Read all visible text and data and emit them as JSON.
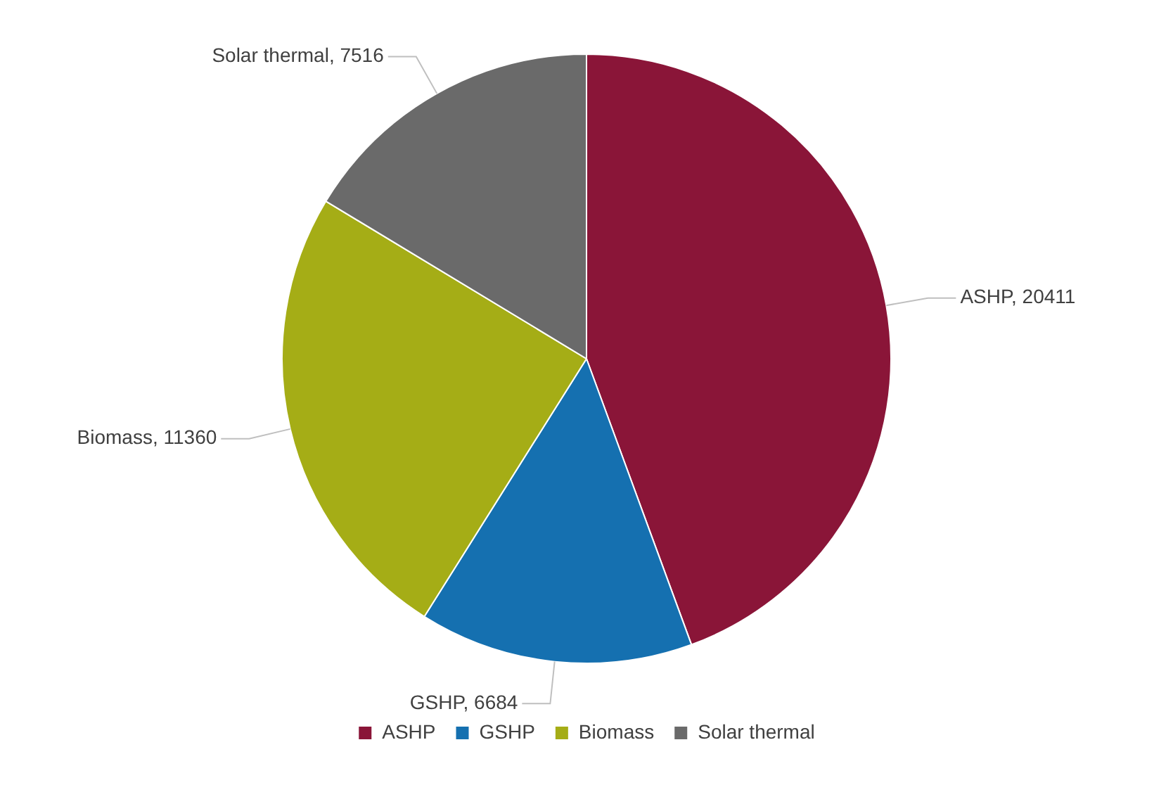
{
  "chart_data": {
    "type": "pie",
    "categories": [
      "ASHP",
      "GSHP",
      "Biomass",
      "Solar thermal"
    ],
    "values": [
      20411,
      6684,
      11360,
      7516
    ],
    "value_labels": [
      "ASHP, 20411",
      "GSHP, 6684",
      "Biomass, 11360",
      "Solar thermal, 7516"
    ],
    "colors": [
      "#8a1538",
      "#1570b0",
      "#a5ad16",
      "#6a6a6a"
    ],
    "legend": "bottom"
  }
}
